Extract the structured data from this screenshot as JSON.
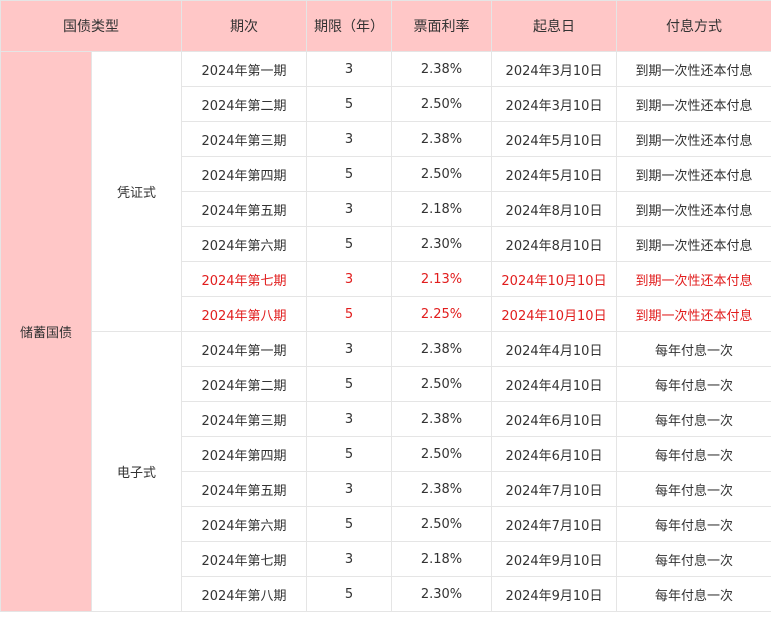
{
  "headers": [
    "国债类型",
    "期次",
    "期限（年）",
    "票面利率",
    "起息日",
    "付息方式"
  ],
  "bond_type": "储蓄国债",
  "groups": [
    {
      "label": "凭证式",
      "rows": [
        {
          "period": "2024年第一期",
          "term": "3",
          "rate": "2.38%",
          "start": "2024年3月10日",
          "pay": "到期一次性还本付息",
          "highlight": false
        },
        {
          "period": "2024年第二期",
          "term": "5",
          "rate": "2.50%",
          "start": "2024年3月10日",
          "pay": "到期一次性还本付息",
          "highlight": false
        },
        {
          "period": "2024年第三期",
          "term": "3",
          "rate": "2.38%",
          "start": "2024年5月10日",
          "pay": "到期一次性还本付息",
          "highlight": false
        },
        {
          "period": "2024年第四期",
          "term": "5",
          "rate": "2.50%",
          "start": "2024年5月10日",
          "pay": "到期一次性还本付息",
          "highlight": false
        },
        {
          "period": "2024年第五期",
          "term": "3",
          "rate": "2.18%",
          "start": "2024年8月10日",
          "pay": "到期一次性还本付息",
          "highlight": false
        },
        {
          "period": "2024年第六期",
          "term": "5",
          "rate": "2.30%",
          "start": "2024年8月10日",
          "pay": "到期一次性还本付息",
          "highlight": false
        },
        {
          "period": "2024年第七期",
          "term": "3",
          "rate": "2.13%",
          "start": "2024年10月10日",
          "pay": "到期一次性还本付息",
          "highlight": true
        },
        {
          "period": "2024年第八期",
          "term": "5",
          "rate": "2.25%",
          "start": "2024年10月10日",
          "pay": "到期一次性还本付息",
          "highlight": true
        }
      ]
    },
    {
      "label": "电子式",
      "rows": [
        {
          "period": "2024年第一期",
          "term": "3",
          "rate": "2.38%",
          "start": "2024年4月10日",
          "pay": "每年付息一次",
          "highlight": false
        },
        {
          "period": "2024年第二期",
          "term": "5",
          "rate": "2.50%",
          "start": "2024年4月10日",
          "pay": "每年付息一次",
          "highlight": false
        },
        {
          "period": "2024年第三期",
          "term": "3",
          "rate": "2.38%",
          "start": "2024年6月10日",
          "pay": "每年付息一次",
          "highlight": false
        },
        {
          "period": "2024年第四期",
          "term": "5",
          "rate": "2.50%",
          "start": "2024年6月10日",
          "pay": "每年付息一次",
          "highlight": false
        },
        {
          "period": "2024年第五期",
          "term": "3",
          "rate": "2.38%",
          "start": "2024年7月10日",
          "pay": "每年付息一次",
          "highlight": false
        },
        {
          "period": "2024年第六期",
          "term": "5",
          "rate": "2.50%",
          "start": "2024年7月10日",
          "pay": "每年付息一次",
          "highlight": false
        },
        {
          "period": "2024年第七期",
          "term": "3",
          "rate": "2.18%",
          "start": "2024年9月10日",
          "pay": "每年付息一次",
          "highlight": false
        },
        {
          "period": "2024年第八期",
          "term": "5",
          "rate": "2.30%",
          "start": "2024年9月10日",
          "pay": "每年付息一次",
          "highlight": false
        }
      ]
    }
  ],
  "colors": {
    "header_bg": "#ffc7c7",
    "highlight_text": "#e11d1d",
    "text": "#333333"
  }
}
